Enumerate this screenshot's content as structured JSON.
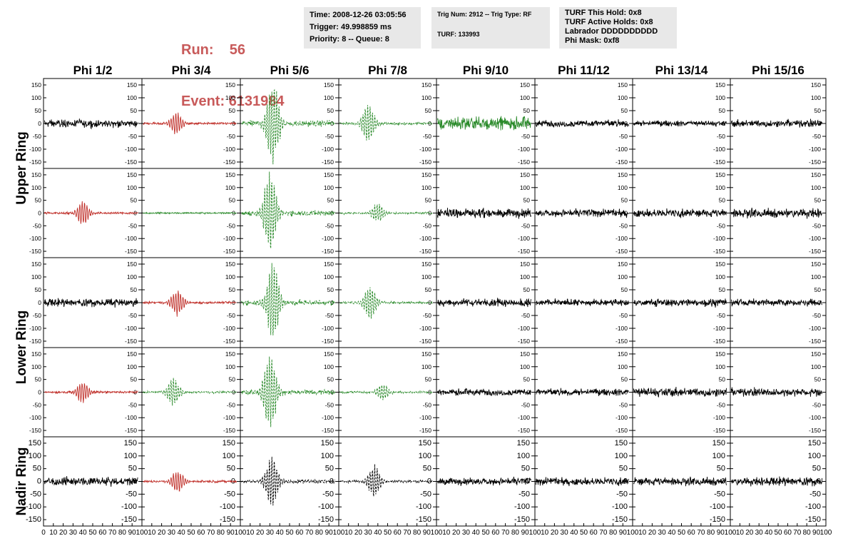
{
  "header": {
    "run_label": "Run:",
    "run_value": "56",
    "event_label": "Event:",
    "event_value": "6131984",
    "info_box_1": [
      "Time: 2008-12-26 03:05:56",
      "Trigger: 49.998859 ms",
      "Priority: 8 -- Queue: 8"
    ],
    "info_box_2": [
      "Trig Num: 2912 -- Trig Type: RF",
      "TURF: 133993"
    ],
    "info_box_3": [
      "TURF This Hold: 0x8",
      "TURF Active Holds: 0x8",
      "Labrador DDDDDDDDDD",
      "Phi Mask: 0xf8"
    ]
  },
  "colors": {
    "normal": "#000000",
    "masked": "#c0302a",
    "triggered": "#2a8a2a",
    "accent_text": "#c85a5a",
    "info_bg": "#e8e8e8"
  },
  "chart_data": {
    "type": "line",
    "columns": [
      "Phi 1/2",
      "Phi 3/4",
      "Phi 5/6",
      "Phi 7/8",
      "Phi 9/10",
      "Phi 11/12",
      "Phi 13/14",
      "Phi 15/16"
    ],
    "rows": [
      "Upper Ring",
      "Upper Ring",
      "Lower Ring",
      "Lower Ring",
      "Nadir Ring"
    ],
    "row_labels": [
      {
        "label": "Upper Ring",
        "spans": [
          0,
          1
        ]
      },
      {
        "label": "Lower Ring",
        "spans": [
          2,
          3
        ]
      },
      {
        "label": "Nadir Ring",
        "spans": [
          4,
          4
        ]
      }
    ],
    "xlim": [
      0,
      100
    ],
    "ylim": [
      -175,
      175
    ],
    "yticks": [
      -150,
      -100,
      -50,
      0,
      50,
      100,
      150
    ],
    "xticks": [
      0,
      10,
      20,
      30,
      40,
      50,
      60,
      70,
      80,
      90,
      100
    ],
    "xtick_labels": [
      "0",
      "10",
      "20",
      "30",
      "40",
      "50",
      "60",
      "70",
      "80",
      "90",
      "100"
    ],
    "ytick_labels": [
      "-150",
      "-100",
      "-50",
      "0",
      "50",
      "100",
      "150"
    ],
    "styles": {
      "n": {
        "color": "#000000",
        "dash": false
      },
      "r": {
        "color": "#c0302a",
        "dash": false
      },
      "g": {
        "color": "#2a8a2a",
        "dash": false
      },
      "G": {
        "color": "#2a8a2a",
        "dash": true
      },
      "B": {
        "color": "#000000",
        "dash": true
      }
    },
    "panels": [
      [
        "n",
        "r",
        "G",
        "G",
        "g",
        "n",
        "n",
        "n"
      ],
      [
        "r",
        "g",
        "G",
        "G",
        "n",
        "n",
        "n",
        "n"
      ],
      [
        "n",
        "r",
        "G",
        "G",
        "n",
        "n",
        "n",
        "n"
      ],
      [
        "r",
        "G",
        "G",
        "G",
        "n",
        "n",
        "n",
        "n"
      ],
      [
        "n",
        "r",
        "B",
        "B",
        "n",
        "n",
        "n",
        "n"
      ]
    ],
    "pulse_amplitude": [
      [
        20,
        45,
        170,
        80,
        35,
        18,
        15,
        20
      ],
      [
        50,
        4,
        170,
        40,
        25,
        20,
        22,
        25
      ],
      [
        20,
        55,
        160,
        70,
        20,
        18,
        20,
        18
      ],
      [
        45,
        60,
        160,
        35,
        18,
        18,
        25,
        22
      ],
      [
        22,
        45,
        110,
        70,
        20,
        20,
        22,
        22
      ]
    ],
    "pulse_center": [
      [
        40,
        35,
        33,
        30,
        50,
        50,
        50,
        50
      ],
      [
        40,
        50,
        30,
        40,
        50,
        50,
        50,
        50
      ],
      [
        40,
        36,
        33,
        32,
        50,
        50,
        50,
        50
      ],
      [
        40,
        32,
        30,
        45,
        50,
        50,
        50,
        50
      ],
      [
        40,
        36,
        32,
        36,
        50,
        50,
        50,
        50
      ]
    ]
  }
}
